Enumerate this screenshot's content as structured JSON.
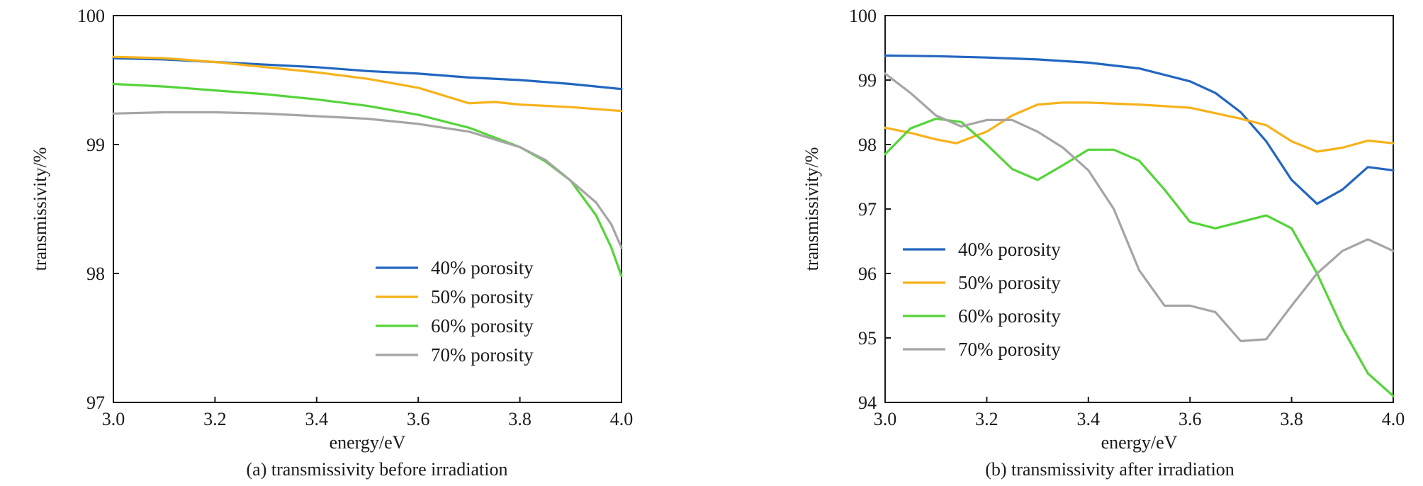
{
  "chart_data": [
    {
      "type": "line",
      "caption": "(a) transmissivity before irradiation",
      "xlabel": "energy/eV",
      "ylabel": "transmissivity/%",
      "xlim": [
        3.0,
        4.0
      ],
      "ylim": [
        97,
        100
      ],
      "xticks": [
        "3.0",
        "3.2",
        "3.4",
        "3.6",
        "3.8",
        "4.0"
      ],
      "yticks": [
        "97",
        "98",
        "99",
        "100"
      ],
      "grid": false,
      "legend_position": "bottom-right",
      "series": [
        {
          "name": "40% porosity",
          "color": "#2266c0",
          "points": [
            [
              3.0,
              99.67
            ],
            [
              3.1,
              99.66
            ],
            [
              3.2,
              99.64
            ],
            [
              3.3,
              99.62
            ],
            [
              3.4,
              99.6
            ],
            [
              3.5,
              99.57
            ],
            [
              3.6,
              99.55
            ],
            [
              3.7,
              99.52
            ],
            [
              3.8,
              99.5
            ],
            [
              3.9,
              99.47
            ],
            [
              4.0,
              99.43
            ]
          ]
        },
        {
          "name": "50% porosity",
          "color": "#f7b21a",
          "points": [
            [
              3.0,
              99.68
            ],
            [
              3.1,
              99.67
            ],
            [
              3.2,
              99.64
            ],
            [
              3.3,
              99.6
            ],
            [
              3.4,
              99.56
            ],
            [
              3.5,
              99.51
            ],
            [
              3.6,
              99.44
            ],
            [
              3.65,
              99.38
            ],
            [
              3.7,
              99.32
            ],
            [
              3.75,
              99.33
            ],
            [
              3.8,
              99.31
            ],
            [
              3.9,
              99.29
            ],
            [
              4.0,
              99.26
            ]
          ]
        },
        {
          "name": "60% porosity",
          "color": "#55d43a",
          "points": [
            [
              3.0,
              99.47
            ],
            [
              3.1,
              99.45
            ],
            [
              3.2,
              99.42
            ],
            [
              3.3,
              99.39
            ],
            [
              3.4,
              99.35
            ],
            [
              3.5,
              99.3
            ],
            [
              3.6,
              99.23
            ],
            [
              3.7,
              99.13
            ],
            [
              3.8,
              98.98
            ],
            [
              3.85,
              98.87
            ],
            [
              3.9,
              98.72
            ],
            [
              3.95,
              98.45
            ],
            [
              3.98,
              98.2
            ],
            [
              4.0,
              97.98
            ]
          ]
        },
        {
          "name": "70% porosity",
          "color": "#a5a5a5",
          "points": [
            [
              3.0,
              99.24
            ],
            [
              3.1,
              99.25
            ],
            [
              3.2,
              99.25
            ],
            [
              3.3,
              99.24
            ],
            [
              3.4,
              99.22
            ],
            [
              3.5,
              99.2
            ],
            [
              3.6,
              99.16
            ],
            [
              3.7,
              99.1
            ],
            [
              3.8,
              98.98
            ],
            [
              3.85,
              98.88
            ],
            [
              3.9,
              98.72
            ],
            [
              3.95,
              98.55
            ],
            [
              3.98,
              98.38
            ],
            [
              4.0,
              98.2
            ]
          ]
        }
      ]
    },
    {
      "type": "line",
      "caption": "(b) transmissivity after irradiation",
      "xlabel": "energy/eV",
      "ylabel": "transmissivity/%",
      "xlim": [
        3.0,
        4.0
      ],
      "ylim": [
        94,
        100
      ],
      "xticks": [
        "3.0",
        "3.2",
        "3.4",
        "3.6",
        "3.8",
        "4.0"
      ],
      "yticks": [
        "94",
        "95",
        "96",
        "97",
        "98",
        "99",
        "100"
      ],
      "grid": false,
      "legend_position": "center-left",
      "series": [
        {
          "name": "40% porosity",
          "color": "#2266c0",
          "points": [
            [
              3.0,
              99.38
            ],
            [
              3.1,
              99.37
            ],
            [
              3.2,
              99.35
            ],
            [
              3.3,
              99.32
            ],
            [
              3.4,
              99.27
            ],
            [
              3.5,
              99.18
            ],
            [
              3.6,
              98.98
            ],
            [
              3.65,
              98.8
            ],
            [
              3.7,
              98.5
            ],
            [
              3.75,
              98.05
            ],
            [
              3.8,
              97.45
            ],
            [
              3.85,
              97.08
            ],
            [
              3.9,
              97.3
            ],
            [
              3.95,
              97.65
            ],
            [
              4.0,
              97.6
            ]
          ]
        },
        {
          "name": "50% porosity",
          "color": "#f7b21a",
          "points": [
            [
              3.0,
              98.26
            ],
            [
              3.05,
              98.18
            ],
            [
              3.1,
              98.08
            ],
            [
              3.14,
              98.02
            ],
            [
              3.2,
              98.2
            ],
            [
              3.25,
              98.45
            ],
            [
              3.3,
              98.62
            ],
            [
              3.35,
              98.65
            ],
            [
              3.4,
              98.65
            ],
            [
              3.5,
              98.62
            ],
            [
              3.6,
              98.57
            ],
            [
              3.7,
              98.4
            ],
            [
              3.75,
              98.3
            ],
            [
              3.8,
              98.05
            ],
            [
              3.85,
              97.89
            ],
            [
              3.9,
              97.95
            ],
            [
              3.95,
              98.06
            ],
            [
              4.0,
              98.02
            ]
          ]
        },
        {
          "name": "60% porosity",
          "color": "#55d43a",
          "points": [
            [
              3.0,
              97.85
            ],
            [
              3.05,
              98.25
            ],
            [
              3.1,
              98.4
            ],
            [
              3.15,
              98.35
            ],
            [
              3.2,
              98.0
            ],
            [
              3.25,
              97.62
            ],
            [
              3.3,
              97.45
            ],
            [
              3.35,
              97.68
            ],
            [
              3.4,
              97.92
            ],
            [
              3.45,
              97.92
            ],
            [
              3.5,
              97.75
            ],
            [
              3.55,
              97.3
            ],
            [
              3.6,
              96.8
            ],
            [
              3.65,
              96.7
            ],
            [
              3.7,
              96.8
            ],
            [
              3.75,
              96.9
            ],
            [
              3.8,
              96.7
            ],
            [
              3.85,
              96.0
            ],
            [
              3.9,
              95.15
            ],
            [
              3.95,
              94.45
            ],
            [
              4.0,
              94.1
            ]
          ]
        },
        {
          "name": "70% porosity",
          "color": "#a5a5a5",
          "points": [
            [
              3.0,
              99.1
            ],
            [
              3.05,
              98.8
            ],
            [
              3.1,
              98.45
            ],
            [
              3.15,
              98.28
            ],
            [
              3.2,
              98.38
            ],
            [
              3.25,
              98.38
            ],
            [
              3.3,
              98.2
            ],
            [
              3.35,
              97.95
            ],
            [
              3.4,
              97.6
            ],
            [
              3.45,
              97.0
            ],
            [
              3.5,
              96.05
            ],
            [
              3.55,
              95.5
            ],
            [
              3.6,
              95.5
            ],
            [
              3.65,
              95.4
            ],
            [
              3.7,
              94.95
            ],
            [
              3.75,
              94.98
            ],
            [
              3.8,
              95.5
            ],
            [
              3.85,
              96.0
            ],
            [
              3.9,
              96.35
            ],
            [
              3.95,
              96.53
            ],
            [
              4.0,
              96.35
            ]
          ]
        }
      ]
    }
  ]
}
